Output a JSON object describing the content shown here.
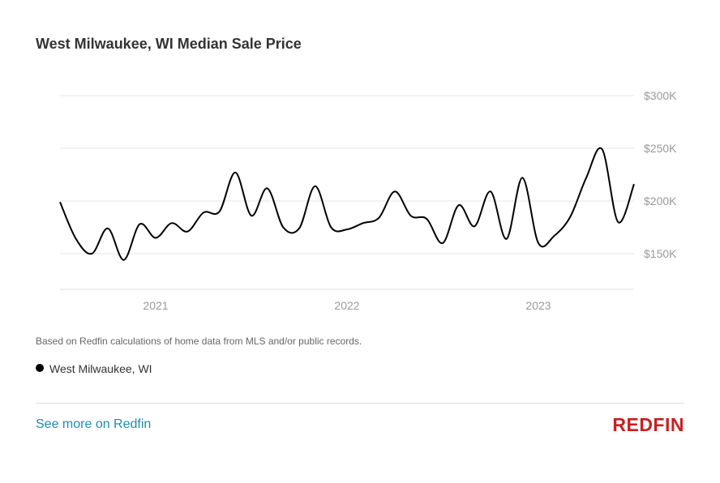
{
  "colors": {
    "line": "#000000",
    "grid": "#e6e6e6",
    "axis": "#dddddd",
    "tick": "#999999",
    "link": "#1a8eae",
    "brand": "#c82021"
  },
  "chart_data": {
    "type": "line",
    "title": "West Milwaukee, WI Median Sale Price",
    "xlabel": "",
    "ylabel": "",
    "y_unit": "USD",
    "ylim": [
      115000,
      300000
    ],
    "yticks": [
      150000,
      200000,
      250000,
      300000
    ],
    "ytick_labels": [
      "$150K",
      "$200K",
      "$250K",
      "$300K"
    ],
    "xlim": [
      "2020-07",
      "2023-07"
    ],
    "xtick_labels": [
      "2021",
      "2022",
      "2023"
    ],
    "xtick_months": [
      "2021-01",
      "2022-01",
      "2023-01"
    ],
    "grid": true,
    "legend": "bottom-left",
    "series": [
      {
        "name": "West Milwaukee, WI",
        "x": [
          "2020-07",
          "2020-08",
          "2020-09",
          "2020-10",
          "2020-11",
          "2020-12",
          "2021-01",
          "2021-02",
          "2021-03",
          "2021-04",
          "2021-05",
          "2021-06",
          "2021-07",
          "2021-08",
          "2021-09",
          "2021-10",
          "2021-11",
          "2021-12",
          "2022-01",
          "2022-02",
          "2022-03",
          "2022-04",
          "2022-05",
          "2022-06",
          "2022-07",
          "2022-08",
          "2022-09",
          "2022-10",
          "2022-11",
          "2022-12",
          "2023-01",
          "2023-02",
          "2023-03",
          "2023-04",
          "2023-05",
          "2023-06",
          "2023-07"
        ],
        "values": [
          199000,
          164000,
          150000,
          174000,
          144000,
          178000,
          165000,
          179000,
          171000,
          189000,
          190000,
          227000,
          186000,
          212000,
          175000,
          174000,
          214000,
          175000,
          173000,
          179000,
          184000,
          209000,
          186000,
          183000,
          160000,
          196000,
          176000,
          209000,
          164000,
          222000,
          160000,
          167000,
          185000,
          222000,
          249000,
          180000,
          216000
        ]
      }
    ]
  },
  "footer": {
    "note": "Based on Redfin calculations of home data from MLS and/or public records.",
    "legend_label": "West Milwaukee, WI",
    "link_label": "See more on Redfin",
    "logo_text": "REDFIN"
  }
}
